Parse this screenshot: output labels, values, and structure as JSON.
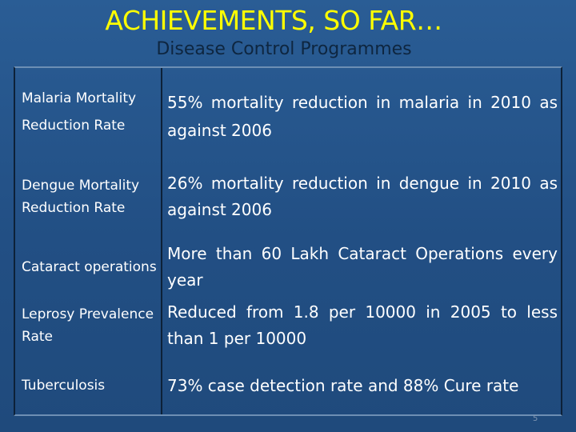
{
  "slide": {
    "title": "ACHIEVEMENTS, SO FAR…",
    "subtitle": "Disease Control Programmes",
    "page_number": "5"
  },
  "rows": [
    {
      "label": "Malaria Mortality Reduction Rate",
      "value": "55% mortality reduction in malaria in 2010 as against 2006"
    },
    {
      "label": "Dengue Mortality Reduction Rate",
      "value": "26% mortality reduction in dengue in 2010 as against 2006"
    },
    {
      "label": "Cataract operations",
      "value": "More than 60 Lakh Cataract Operations every year"
    },
    {
      "label": "Leprosy Prevalence Rate",
      "value": "Reduced from 1.8 per 10000 in 2005 to less than 1 per 10000"
    },
    {
      "label": "Tuberculosis",
      "value": "73% case detection rate and 88% Cure rate"
    }
  ],
  "colors": {
    "background": "#224f84",
    "title": "#ffff00",
    "subtitle": "#0e2640",
    "text": "#ffffff"
  }
}
